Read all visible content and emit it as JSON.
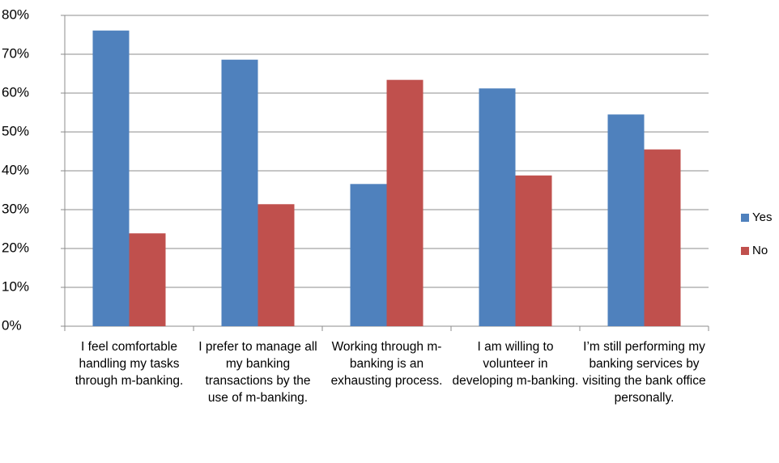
{
  "chart_data": {
    "type": "bar",
    "categories": [
      "I feel comfortable handling my tasks through m-banking.",
      "I prefer to manage all my banking transactions by the use of m-banking.",
      "Working through m-banking is an exhausting process.",
      "I am willing to volunteer in developing m-banking.",
      "I’m still performing my banking services by visiting the bank office personally."
    ],
    "series": [
      {
        "name": "Yes",
        "color": "#4f81bd",
        "values": [
          76.1,
          68.6,
          36.6,
          61.2,
          54.5
        ]
      },
      {
        "name": "No",
        "color": "#c0504d",
        "values": [
          23.9,
          31.4,
          63.4,
          38.8,
          45.5
        ]
      }
    ],
    "ylim": [
      0,
      80
    ],
    "yticks": [
      {
        "value": 0,
        "label": "0%"
      },
      {
        "value": 10,
        "label": "10%"
      },
      {
        "value": 20,
        "label": "20%"
      },
      {
        "value": 30,
        "label": "30%"
      },
      {
        "value": 40,
        "label": "40%"
      },
      {
        "value": 50,
        "label": "50%"
      },
      {
        "value": 60,
        "label": "60%"
      },
      {
        "value": 70,
        "label": "70%"
      },
      {
        "value": 80,
        "label": "80%"
      }
    ],
    "grid": true,
    "legend": "right"
  }
}
